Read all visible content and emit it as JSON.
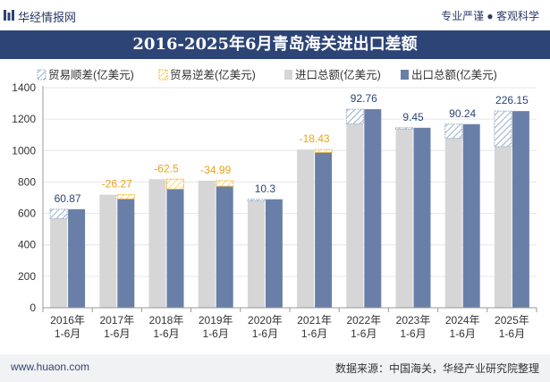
{
  "header": {
    "brand": "华经情报网",
    "tagline": "专业严谨 ● 客观科学"
  },
  "footer": {
    "website": "www.huaon.com",
    "source": "数据来源：中国海关，华经产业研究院整理"
  },
  "chart_data": {
    "type": "bar",
    "title": "2016-2025年6月青岛海关进出口差额",
    "categories": [
      [
        "2016年",
        "1-6月"
      ],
      [
        "2017年",
        "1-6月"
      ],
      [
        "2018年",
        "1-6月"
      ],
      [
        "2019年",
        "1-6月"
      ],
      [
        "2020年",
        "1-6月"
      ],
      [
        "2021年",
        "1-6月"
      ],
      [
        "2022年",
        "1-6月"
      ],
      [
        "2023年",
        "1-6月"
      ],
      [
        "2024年",
        "1-6月"
      ],
      [
        "2025年",
        "1-6月"
      ]
    ],
    "legend": [
      "贸易顺差(亿美元)",
      "贸易逆差(亿美元)",
      "进口总额(亿美元)",
      "出口总额(亿美元)"
    ],
    "series": [
      {
        "name": "进口总额(亿美元)",
        "values": [
          566,
          719,
          818,
          808,
          680,
          1006,
          1170,
          1136,
          1078,
          1025
        ]
      },
      {
        "name": "出口总额(亿美元)",
        "values": [
          627,
          692,
          755,
          773,
          690,
          988,
          1263,
          1145,
          1168,
          1251
        ]
      }
    ],
    "balance": [
      60.87,
      -26.27,
      -62.5,
      -34.99,
      10.3,
      -18.43,
      92.76,
      9.45,
      90.24,
      226.15
    ],
    "balance_labels": [
      "60.87",
      "-26.27",
      "-62.5",
      "-34.99",
      "10.3",
      "-18.43",
      "92.76",
      "9.45",
      "90.24",
      "226.15"
    ],
    "ylim": [
      0,
      1400
    ],
    "yticks": [
      0,
      200,
      400,
      600,
      800,
      1000,
      1200,
      1400
    ],
    "colors": {
      "import": "#d6d6d6",
      "export": "#6a7fa8",
      "surplus_stroke": "#9fb4cc",
      "deficit_stroke": "#f2b820",
      "surplus_label": "#2d4476",
      "deficit_label": "#e8a317"
    }
  }
}
